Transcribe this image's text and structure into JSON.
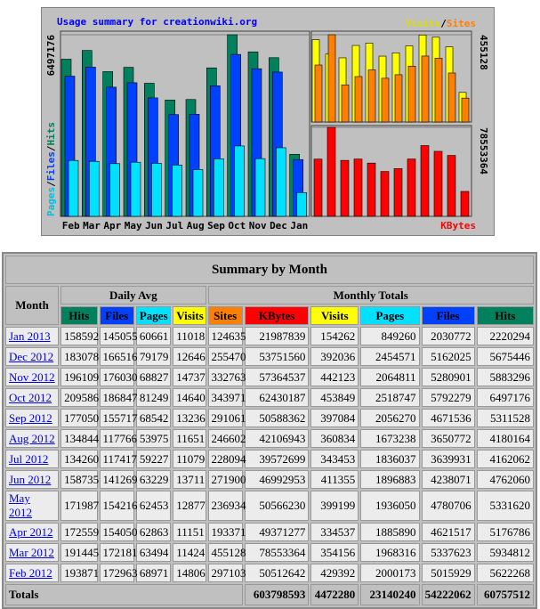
{
  "chart_data": [
    {
      "type": "bar",
      "title": "Usage summary for creationwiki.org",
      "categories": [
        "Feb",
        "Mar",
        "Apr",
        "May",
        "Jun",
        "Jul",
        "Aug",
        "Sep",
        "Oct",
        "Nov",
        "Dec",
        "Jan"
      ],
      "series": [
        {
          "name": "Hits",
          "color": "#00805c",
          "values": [
            5622268,
            5934812,
            5176786,
            5331620,
            4762060,
            4162062,
            4180164,
            5311528,
            6497176,
            5883296,
            5675446,
            2220294
          ]
        },
        {
          "name": "Files",
          "color": "#0040ff",
          "values": [
            5015929,
            5337623,
            4621517,
            4780706,
            4238071,
            3639931,
            3650772,
            4671536,
            5792279,
            5280901,
            5162025,
            2030772
          ]
        },
        {
          "name": "Pages",
          "color": "#00e0ff",
          "values": [
            2000173,
            1968316,
            1885890,
            1936050,
            1896883,
            1836037,
            1673238,
            2056270,
            2518747,
            2064811,
            2454571,
            849260
          ]
        }
      ],
      "ylim": [
        0,
        6497176
      ],
      "yticks": [
        6497176
      ]
    },
    {
      "type": "bar",
      "series": [
        {
          "name": "Visits",
          "color": "#ffff00",
          "values": [
            429392,
            354156,
            334537,
            399199,
            411355,
            343453,
            360834,
            397084,
            453849,
            442123,
            392036,
            154262
          ]
        },
        {
          "name": "Sites",
          "color": "#ff8000",
          "values": [
            297103,
            455128,
            193371,
            236934,
            271900,
            228094,
            246602,
            291061,
            343971,
            332763,
            255470,
            124635
          ]
        }
      ],
      "ylim": [
        0,
        455128
      ],
      "yticks": [
        455128
      ]
    },
    {
      "type": "bar",
      "series": [
        {
          "name": "KBytes",
          "color": "#ff0000",
          "values": [
            50512642,
            78553364,
            49371277,
            50566230,
            46992953,
            39572699,
            42106943,
            50588362,
            62430187,
            57364537,
            53751560,
            21987839
          ]
        }
      ],
      "ylim": [
        0,
        78553364
      ],
      "yticks": [
        78553364
      ]
    }
  ],
  "table": {
    "title": "Summary by Month",
    "month_header": "Month",
    "daily_header": "Daily Avg",
    "monthly_header": "Monthly Totals",
    "daily_columns": [
      "Hits",
      "Files",
      "Pages",
      "Visits"
    ],
    "monthly_columns": [
      "Sites",
      "KBytes",
      "Visits",
      "Pages",
      "Files",
      "Hits"
    ],
    "rows": [
      [
        "Jan 2013",
        158592,
        145055,
        60661,
        11018,
        124635,
        21987839,
        154262,
        849260,
        2030772,
        2220294
      ],
      [
        "Dec 2012",
        183078,
        166516,
        79179,
        12646,
        255470,
        53751560,
        392036,
        2454571,
        5162025,
        5675446
      ],
      [
        "Nov 2012",
        196109,
        176030,
        68827,
        14737,
        332763,
        57364537,
        442123,
        2064811,
        5280901,
        5883296
      ],
      [
        "Oct 2012",
        209586,
        186847,
        81249,
        14640,
        343971,
        62430187,
        453849,
        2518747,
        5792279,
        6497176
      ],
      [
        "Sep 2012",
        177050,
        155717,
        68542,
        13236,
        291061,
        50588362,
        397084,
        2056270,
        4671536,
        5311528
      ],
      [
        "Aug 2012",
        134844,
        117766,
        53975,
        11651,
        246602,
        42106943,
        360834,
        1673238,
        3650772,
        4180164
      ],
      [
        "Jul 2012",
        134260,
        117417,
        59227,
        11079,
        228094,
        39572699,
        343453,
        1836037,
        3639931,
        4162062
      ],
      [
        "Jun 2012",
        158735,
        141269,
        63229,
        13711,
        271900,
        46992953,
        411355,
        1896883,
        4238071,
        4762060
      ],
      [
        "May 2012",
        171987,
        154216,
        62453,
        12877,
        236934,
        50566230,
        399199,
        1936050,
        4780706,
        5331620
      ],
      [
        "Apr 2012",
        172559,
        154050,
        62863,
        11151,
        193371,
        49371277,
        334537,
        1885890,
        4621517,
        5176786
      ],
      [
        "Mar 2012",
        191445,
        172181,
        63494,
        11424,
        455128,
        78553364,
        354156,
        1968316,
        5337623,
        5934812
      ],
      [
        "Feb 2012",
        193871,
        172963,
        68971,
        14806,
        297103,
        50512642,
        429392,
        2000173,
        5015929,
        5622268
      ]
    ],
    "totals": {
      "label": "Totals",
      "values": [
        603798593,
        4472280,
        23140240,
        54222062,
        60757512
      ]
    }
  }
}
